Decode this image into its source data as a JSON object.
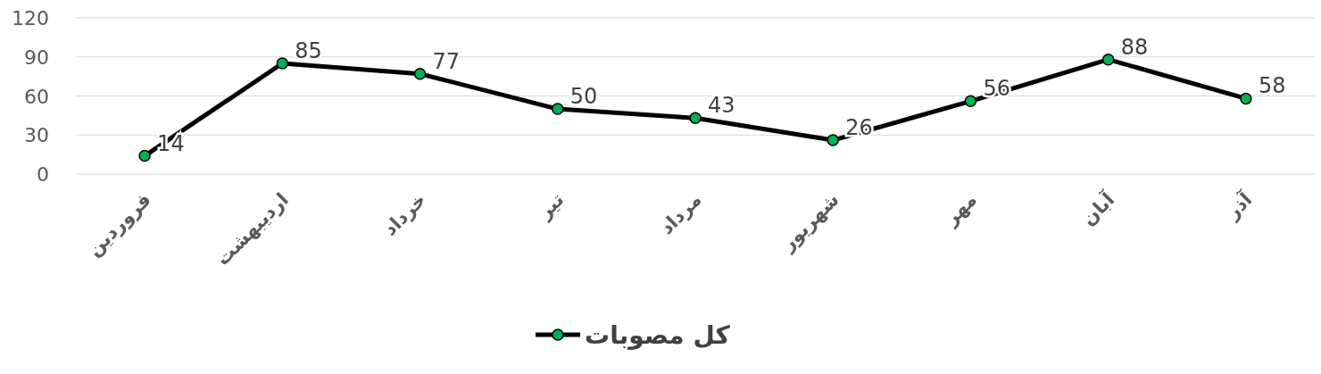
{
  "chart_data": {
    "type": "line",
    "categories": [
      "فروردین",
      "اردیبهشت",
      "خرداد",
      "تیر",
      "مرداد",
      "شهریور",
      "مهر",
      "آبان",
      "آذر"
    ],
    "series": [
      {
        "name": "کل مصوبات",
        "color": "#000000",
        "colors": [
          "#00b050",
          "#00b050",
          "#00b050",
          "#00b050",
          "#00b050",
          "#00b050",
          "#00b050",
          "#00b050",
          "#00b050"
        ],
        "values": [
          14,
          85,
          77,
          50,
          43,
          26,
          56,
          88,
          58
        ]
      }
    ],
    "ylim": [
      0,
      120
    ],
    "yticks": [
      0,
      30,
      60,
      90,
      120
    ],
    "grid": "y",
    "legend": "bottom",
    "marker": "circle",
    "line_style": "solid",
    "data_labels": true
  }
}
